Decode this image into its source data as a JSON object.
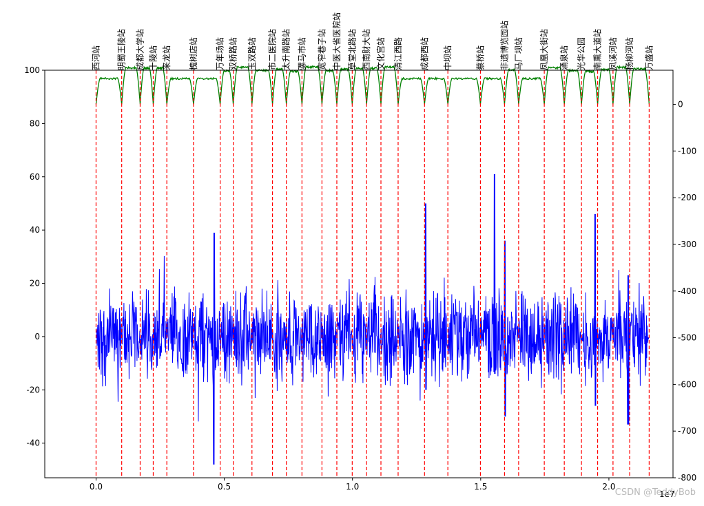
{
  "watermark": "CSDN @TeddyBob",
  "chart_data": {
    "type": "line",
    "x_range": [
      -2000000,
      22500000
    ],
    "x_ticks": [
      0,
      5000000,
      10000000,
      15000000,
      20000000
    ],
    "x_tick_labels": [
      "0.0",
      "0.5",
      "1.0",
      "1.5",
      "2.0"
    ],
    "x_offset_label": "1e7",
    "y_left_range": [
      -53,
      100
    ],
    "y_left_ticks": [
      -40,
      -20,
      0,
      20,
      40,
      60,
      80,
      100
    ],
    "y_right_range": [
      -800,
      73
    ],
    "y_right_ticks": [
      -800,
      -700,
      -600,
      -500,
      -400,
      -300,
      -200,
      -100,
      0
    ],
    "grid": false,
    "series": [
      {
        "axis": "left",
        "color": "#0000ff",
        "kind": "vibration",
        "approx_value_range": [
          -48,
          61
        ]
      },
      {
        "axis": "right",
        "color": "#008000",
        "kind": "speed-profile",
        "approx_value_range": [
          0,
          82
        ]
      }
    ],
    "station_line_color": "#ff0000",
    "stations": [
      {
        "name": "西河站",
        "x": 0
      },
      {
        "name": "明蜀王陵站",
        "x": 1000000
      },
      {
        "name": "成都大学站",
        "x": 1720000
      },
      {
        "name": "十陵站",
        "x": 2230000
      },
      {
        "name": "来龙站",
        "x": 2760000
      },
      {
        "name": "槐树店站",
        "x": 3800000
      },
      {
        "name": "万年场站",
        "x": 4840000
      },
      {
        "name": "双桥路站",
        "x": 5350000
      },
      {
        "name": "玉双路站",
        "x": 6080000
      },
      {
        "name": "市二医院站",
        "x": 6880000
      },
      {
        "name": "太升南路站",
        "x": 7420000
      },
      {
        "name": "骡马市站",
        "x": 8030000
      },
      {
        "name": "宽窄巷子站",
        "x": 8810000
      },
      {
        "name": "中医大省医院站",
        "x": 9390000
      },
      {
        "name": "草堂北路站",
        "x": 9990000
      },
      {
        "name": "西南财大站",
        "x": 10550000
      },
      {
        "name": "文化宫站",
        "x": 11110000
      },
      {
        "name": "清江西路",
        "x": 11780000
      },
      {
        "name": "成都西站",
        "x": 12810000
      },
      {
        "name": "中坝站",
        "x": 13720000
      },
      {
        "name": "蔡桥站",
        "x": 14990000
      },
      {
        "name": "非遗博览园站",
        "x": 15930000
      },
      {
        "name": "马厂坝站",
        "x": 16480000
      },
      {
        "name": "凤凰大街站",
        "x": 17480000
      },
      {
        "name": "涌泉站",
        "x": 18260000
      },
      {
        "name": "光华公园",
        "x": 18930000
      },
      {
        "name": "南熏大道站",
        "x": 19560000
      },
      {
        "name": "凤溪河站",
        "x": 20160000
      },
      {
        "name": "杨柳河站",
        "x": 20810000
      },
      {
        "name": "万盛站",
        "x": 21570000
      }
    ]
  }
}
